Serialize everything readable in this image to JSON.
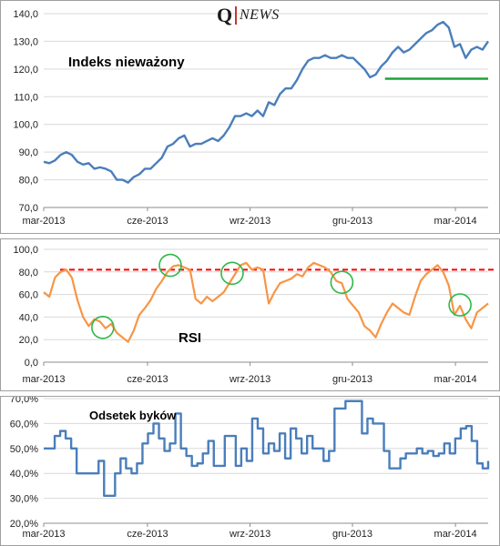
{
  "logo": {
    "q": "Q",
    "text": "NEWS"
  },
  "x_tick_labels": [
    "mar-2013",
    "cze-2013",
    "wrz-2013",
    "gru-2013",
    "mar-2014"
  ],
  "colors": {
    "price": "#4a7ebb",
    "rsi": "#f79646",
    "threshold": "#ff0000",
    "support": "#1fa33a",
    "circle": "#2eb84a",
    "grid": "#d9d9d9"
  },
  "chart_data": [
    {
      "type": "line",
      "title": "Indeks nieważony",
      "ylim": [
        70,
        140
      ],
      "yticks": [
        "70,0",
        "80,0",
        "90,0",
        "100,0",
        "110,0",
        "120,0",
        "130,0",
        "140,0"
      ],
      "x_range": [
        0,
        56
      ],
      "grid": true,
      "series": [
        {
          "values": [
            86.5,
            86,
            87,
            89,
            90,
            89,
            86.5,
            85.5,
            86,
            84,
            84.5,
            84,
            83,
            80,
            80,
            79,
            81,
            82,
            84,
            84,
            86,
            88,
            92,
            93,
            95,
            96,
            92,
            93,
            93,
            94,
            95,
            94,
            96,
            99,
            103,
            103,
            104,
            103,
            105,
            103,
            108,
            107,
            111,
            113,
            113,
            116,
            120,
            123,
            124,
            124,
            125,
            124,
            124,
            125,
            124,
            124,
            122,
            120,
            117,
            118,
            121,
            123,
            126,
            128,
            126,
            127,
            129,
            131,
            133,
            134,
            136,
            137,
            135,
            128,
            129,
            124,
            127,
            128,
            127,
            130
          ]
        }
      ],
      "support_line": {
        "value": 116.5,
        "x_from": 43,
        "x_to": 56
      }
    },
    {
      "type": "line",
      "title": "RSI",
      "ylim": [
        0,
        100
      ],
      "yticks": [
        "0,0",
        "20,0",
        "40,0",
        "60,0",
        "80,0",
        "100,0"
      ],
      "x_range": [
        0,
        56
      ],
      "grid": true,
      "threshold": 82,
      "series": [
        {
          "values": [
            62,
            58,
            75,
            80,
            82,
            75,
            55,
            40,
            32,
            38,
            36,
            30,
            34,
            26,
            22,
            18,
            28,
            42,
            48,
            55,
            65,
            72,
            80,
            85,
            86,
            84,
            82,
            56,
            52,
            58,
            54,
            58,
            62,
            70,
            78,
            86,
            88,
            82,
            84,
            82,
            52,
            62,
            70,
            72,
            74,
            78,
            76,
            84,
            88,
            86,
            84,
            80,
            72,
            70,
            56,
            50,
            44,
            32,
            28,
            22,
            34,
            44,
            52,
            48,
            44,
            42,
            58,
            72,
            78,
            82,
            86,
            80,
            68,
            42,
            50,
            38,
            30,
            44,
            48,
            52
          ]
        }
      ],
      "circles_at_x": [
        10.5,
        22.5,
        33.5,
        53,
        74
      ]
    },
    {
      "type": "line",
      "title": "Odsetek byków",
      "ylim": [
        20,
        70
      ],
      "yticks": [
        "20,0%",
        "30,0%",
        "40,0%",
        "50,0%",
        "60,0%",
        "70,0%"
      ],
      "x_range": [
        0,
        56
      ],
      "grid": true,
      "series": [
        {
          "values": [
            50,
            50,
            55,
            57,
            54,
            50,
            40,
            40,
            40,
            40,
            45,
            31,
            31,
            40,
            46,
            42,
            40,
            44,
            52,
            56,
            60,
            54,
            49,
            52,
            64,
            50,
            47,
            43,
            44,
            48,
            53,
            43,
            43,
            55,
            55,
            43,
            50,
            45,
            62,
            58,
            48,
            52,
            49,
            56,
            46,
            58,
            54,
            48,
            55,
            50,
            50,
            45,
            49,
            66,
            66,
            69,
            69,
            69,
            56,
            62,
            60,
            60,
            49,
            42,
            42,
            46,
            48,
            48,
            50,
            48,
            49,
            47,
            48,
            52,
            48,
            54,
            58,
            59,
            53,
            44,
            42,
            45
          ]
        }
      ]
    }
  ]
}
